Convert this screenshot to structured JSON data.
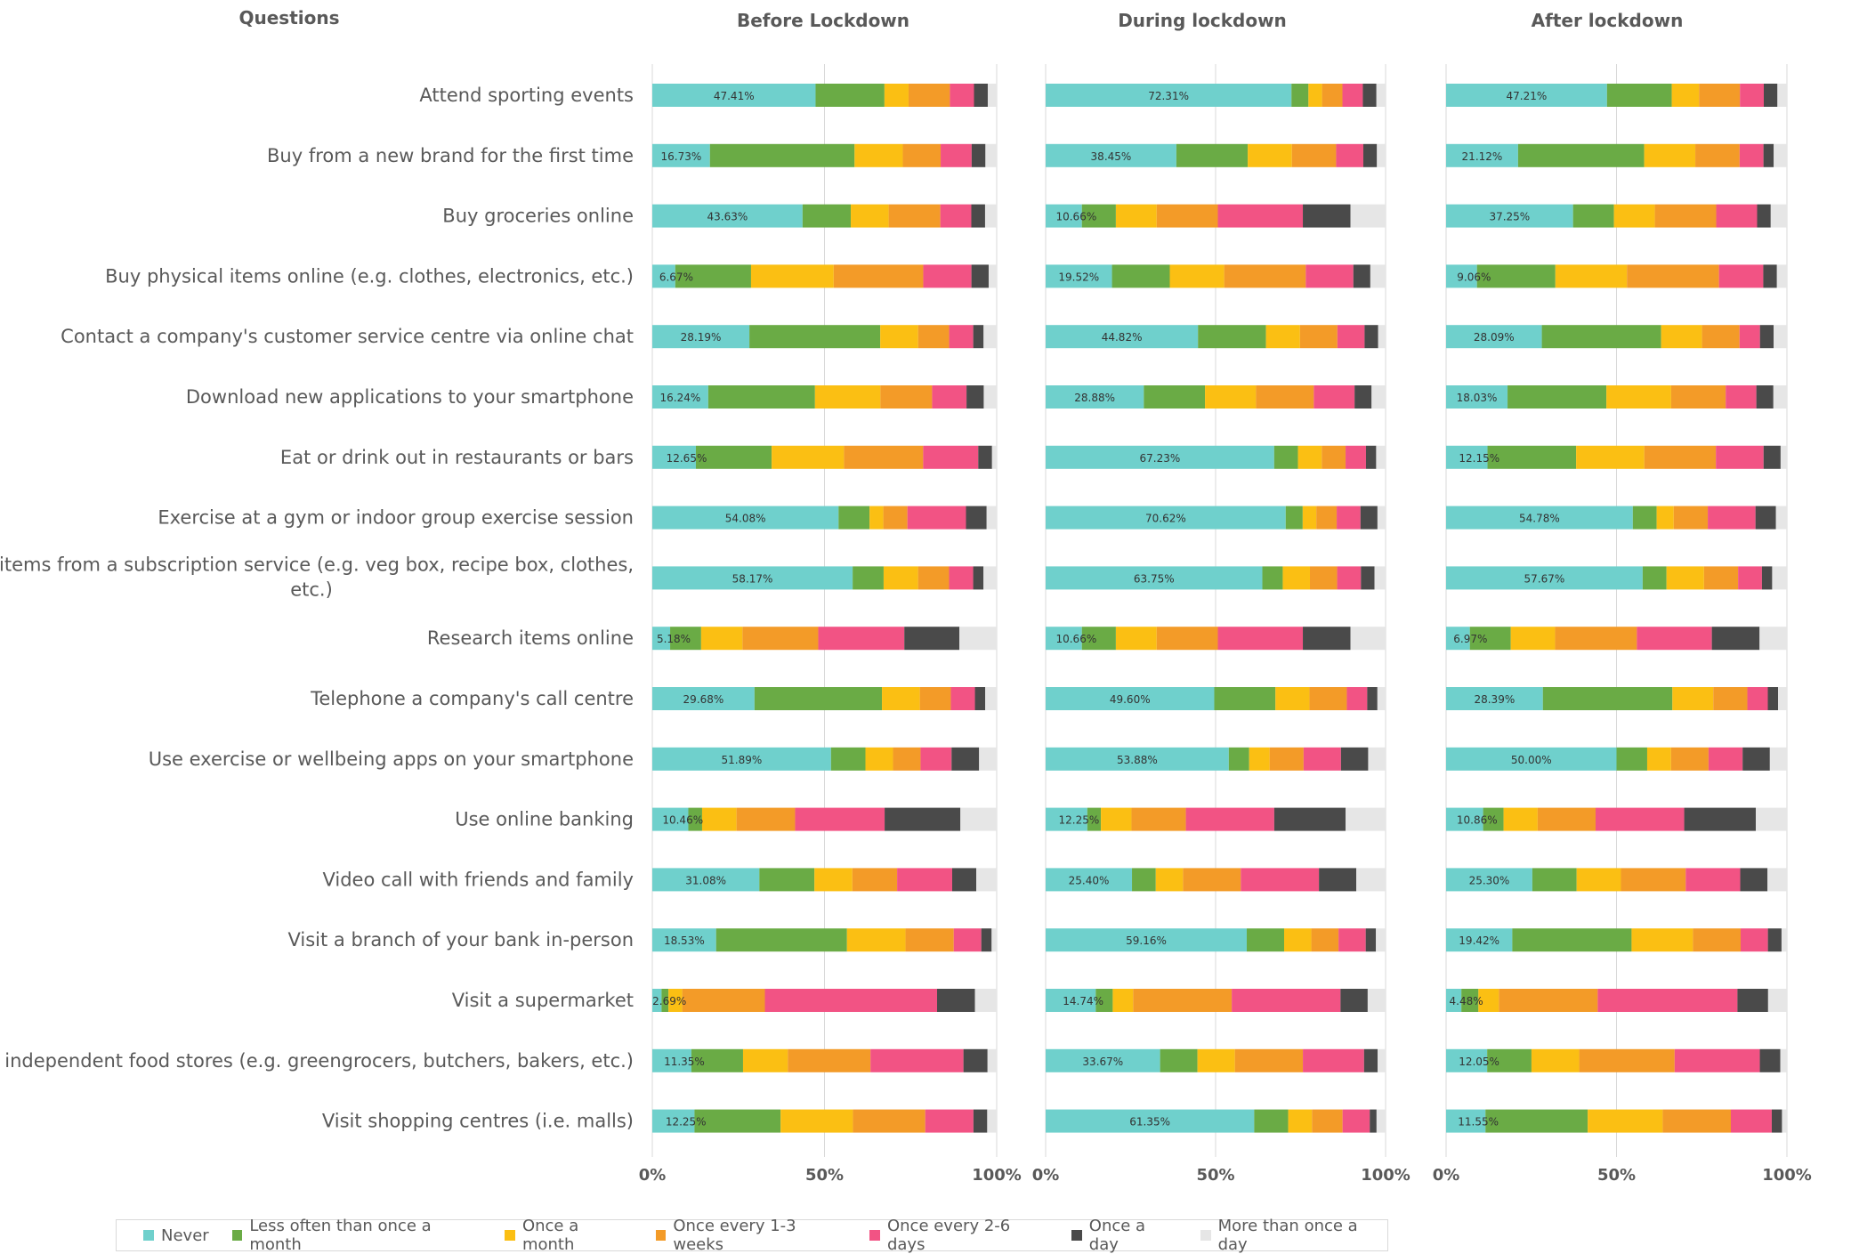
{
  "chart_data": {
    "type": "bar",
    "stacked": true,
    "orientation": "horizontal",
    "percent_stacked": true,
    "question_header": "Questions",
    "x_ticks": [
      "0%",
      "50%",
      "100%"
    ],
    "grid": true,
    "legend_position": "bottom",
    "categories": [
      "Attend sporting events",
      "Buy from a new brand for the first time",
      "Buy groceries online",
      "Buy physical items online (e.g. clothes, electronics, etc.)",
      "Contact a company's customer service centre via online chat",
      "Download new applications to your smartphone",
      "Eat or drink out in restaurants or bars",
      "Exercise at a gym or indoor group exercise session",
      "Receive items from a subscription service (e.g. veg box, recipe box, clothes, etc.)",
      "Research items online",
      "Telephone a company's call centre",
      "Use exercise or wellbeing apps on your smartphone",
      "Use online banking",
      "Video call with friends and family",
      "Visit a branch of your bank in-person",
      "Visit a supermarket",
      "Visit independent food stores (e.g. greengrocers, butchers, bakers, etc.)",
      "Visit shopping centres (i.e. malls)"
    ],
    "series_names": [
      "Never",
      "Less often than once a month",
      "Once a month",
      "Once every 1-3 weeks",
      "Once every 2-6 days",
      "Once a day",
      "More than once a day"
    ],
    "colors": [
      "#6fd0cc",
      "#6aab45",
      "#fbbf13",
      "#f39b28",
      "#f25384",
      "#4a4a4a",
      "#e6e6e6"
    ],
    "panels": [
      {
        "title": "Before Lockdown",
        "labels": [
          "47.41%",
          "16.73%",
          "43.63%",
          "6.67%",
          "28.19%",
          "16.24%",
          "12.65%",
          "54.08%",
          "58.17%",
          "5.18%",
          "29.68%",
          "51.89%",
          "10.46%",
          "31.08%",
          "18.53%",
          "2.69%",
          "11.35%",
          "12.25%"
        ],
        "values": [
          [
            47.41,
            20,
            7,
            12,
            7,
            4,
            2.59
          ],
          [
            16.73,
            42,
            14,
            11,
            9,
            4,
            3.27
          ],
          [
            43.63,
            14,
            11,
            15,
            9,
            4,
            3.37
          ],
          [
            6.67,
            22,
            24,
            26,
            14,
            5,
            2.33
          ],
          [
            28.19,
            38,
            11,
            9,
            7,
            3,
            3.81
          ],
          [
            16.24,
            31,
            19,
            15,
            10,
            5,
            3.76
          ],
          [
            12.65,
            22,
            21,
            23,
            16,
            4,
            1.35
          ],
          [
            54.08,
            9,
            4,
            7,
            17,
            6,
            2.92
          ],
          [
            58.17,
            9,
            10,
            9,
            7,
            3,
            3.83
          ],
          [
            5.18,
            9,
            12,
            22,
            25,
            16,
            10.82
          ],
          [
            29.68,
            37,
            11,
            9,
            7,
            3,
            3.32
          ],
          [
            51.89,
            10,
            8,
            8,
            9,
            8,
            5.11
          ],
          [
            10.46,
            4,
            10,
            17,
            26,
            22,
            10.54
          ],
          [
            31.08,
            16,
            11,
            13,
            16,
            7,
            5.92
          ],
          [
            18.53,
            38,
            17,
            14,
            8,
            3,
            1.47
          ],
          [
            2.69,
            2,
            4,
            24,
            50,
            11,
            6.31
          ],
          [
            11.35,
            15,
            13,
            24,
            27,
            7,
            2.65
          ],
          [
            12.25,
            25,
            21,
            21,
            14,
            4,
            2.75
          ]
        ]
      },
      {
        "title": "During lockdown",
        "labels": [
          "72.31%",
          "38.45%",
          "10.66%",
          "19.52%",
          "44.82%",
          "28.88%",
          "67.23%",
          "70.62%",
          "63.75%",
          "10.66%",
          "49.60%",
          "53.88%",
          "12.25%",
          "25.40%",
          "59.16%",
          "14.74%",
          "33.67%",
          "61.35%"
        ],
        "values": [
          [
            72.31,
            5,
            4,
            6,
            6,
            4,
            2.69
          ],
          [
            38.45,
            21,
            13,
            13,
            8,
            4,
            2.55
          ],
          [
            10.66,
            10,
            12,
            18,
            25,
            14,
            10.34
          ],
          [
            19.52,
            17,
            16,
            24,
            14,
            5,
            4.48
          ],
          [
            44.82,
            20,
            10,
            11,
            8,
            4,
            2.18
          ],
          [
            28.88,
            18,
            15,
            17,
            12,
            5,
            4.12
          ],
          [
            67.23,
            7,
            7,
            7,
            6,
            3,
            2.77
          ],
          [
            70.62,
            5,
            4,
            6,
            7,
            5,
            2.38
          ],
          [
            63.75,
            6,
            8,
            8,
            7,
            4,
            3.25
          ],
          [
            10.66,
            10,
            12,
            18,
            25,
            14,
            10.34
          ],
          [
            49.6,
            18,
            10,
            11,
            6,
            3,
            2.4
          ],
          [
            53.88,
            6,
            6,
            10,
            11,
            8,
            5.12
          ],
          [
            12.25,
            4,
            9,
            16,
            26,
            21,
            11.75
          ],
          [
            25.4,
            7,
            8,
            17,
            23,
            11,
            8.6
          ],
          [
            59.16,
            11,
            8,
            8,
            8,
            3,
            2.84
          ],
          [
            14.74,
            5,
            6,
            29,
            32,
            8,
            5.26
          ],
          [
            33.67,
            11,
            11,
            20,
            18,
            4,
            2.33
          ],
          [
            61.35,
            10,
            7,
            9,
            8,
            2,
            2.65
          ]
        ]
      },
      {
        "title": "After lockdown",
        "labels": [
          "47.21%",
          "21.12%",
          "37.25%",
          "9.06%",
          "28.09%",
          "18.03%",
          "12.15%",
          "54.78%",
          "57.67%",
          "6.97%",
          "28.39%",
          "50.00%",
          "10.86%",
          "25.30%",
          "19.42%",
          "4.48%",
          "12.05%",
          "11.55%"
        ],
        "values": [
          [
            47.21,
            19,
            8,
            12,
            7,
            4,
            2.79
          ],
          [
            21.12,
            37,
            15,
            13,
            7,
            3,
            3.88
          ],
          [
            37.25,
            12,
            12,
            18,
            12,
            4,
            4.75
          ],
          [
            9.06,
            23,
            21,
            27,
            13,
            4,
            2.94
          ],
          [
            28.09,
            35,
            12,
            11,
            6,
            4,
            3.91
          ],
          [
            18.03,
            29,
            19,
            16,
            9,
            5,
            3.97
          ],
          [
            12.15,
            26,
            20,
            21,
            14,
            5,
            1.85
          ],
          [
            54.78,
            7,
            5,
            10,
            14,
            6,
            3.22
          ],
          [
            57.67,
            7,
            11,
            10,
            7,
            3,
            4.33
          ],
          [
            6.97,
            12,
            13,
            24,
            22,
            14,
            8.03
          ],
          [
            28.39,
            38,
            12,
            10,
            6,
            3,
            2.61
          ],
          [
            50.0,
            9,
            7,
            11,
            10,
            8,
            5.0
          ],
          [
            10.86,
            6,
            10,
            17,
            26,
            21,
            9.14
          ],
          [
            25.3,
            13,
            13,
            19,
            16,
            8,
            5.7
          ],
          [
            19.42,
            35,
            18,
            14,
            8,
            4,
            1.58
          ],
          [
            4.48,
            5,
            6,
            29,
            41,
            9,
            5.52
          ],
          [
            12.05,
            13,
            14,
            28,
            25,
            6,
            1.95
          ],
          [
            11.55,
            30,
            22,
            20,
            12,
            3,
            1.45
          ]
        ]
      }
    ]
  }
}
